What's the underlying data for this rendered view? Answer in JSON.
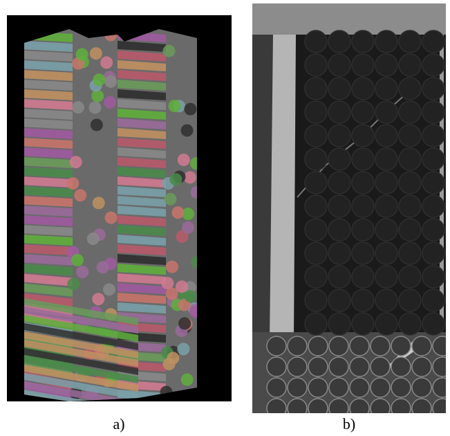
{
  "figure": {
    "panels": [
      {
        "label": "a)"
      },
      {
        "label": "b)"
      }
    ]
  }
}
